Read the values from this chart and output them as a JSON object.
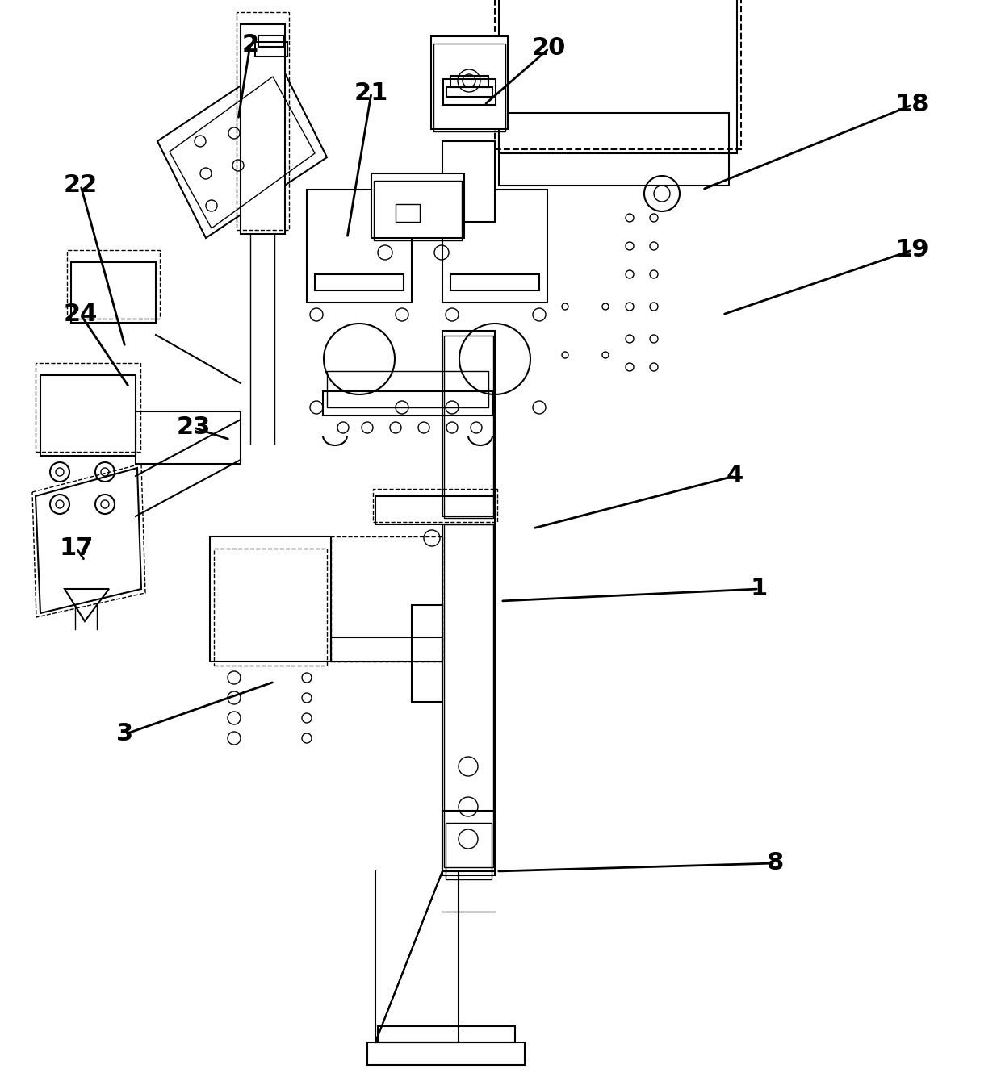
{
  "background_color": "#ffffff",
  "line_color": "#000000",
  "label_fontsize": 22,
  "figsize": [
    12.4,
    13.35
  ],
  "dpi": 100,
  "annotations": [
    [
      "2",
      [
        310,
        55
      ],
      [
        295,
        148
      ]
    ],
    [
      "21",
      [
        460,
        115
      ],
      [
        430,
        295
      ]
    ],
    [
      "20",
      [
        680,
        60
      ],
      [
        600,
        130
      ]
    ],
    [
      "18",
      [
        1130,
        130
      ],
      [
        870,
        235
      ]
    ],
    [
      "19",
      [
        1130,
        310
      ],
      [
        895,
        390
      ]
    ],
    [
      "22",
      [
        100,
        230
      ],
      [
        155,
        430
      ]
    ],
    [
      "24",
      [
        100,
        390
      ],
      [
        160,
        480
      ]
    ],
    [
      "23",
      [
        240,
        530
      ],
      [
        285,
        545
      ]
    ],
    [
      "17",
      [
        95,
        680
      ],
      [
        105,
        695
      ]
    ],
    [
      "1",
      [
        940,
        730
      ],
      [
        620,
        745
      ]
    ],
    [
      "4",
      [
        910,
        590
      ],
      [
        660,
        655
      ]
    ],
    [
      "3",
      [
        155,
        910
      ],
      [
        340,
        845
      ]
    ],
    [
      "8",
      [
        960,
        1070
      ],
      [
        615,
        1080
      ]
    ]
  ]
}
